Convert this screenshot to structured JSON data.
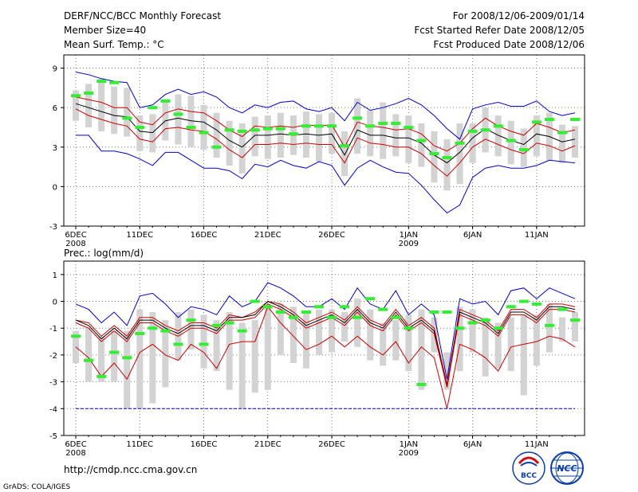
{
  "header": {
    "title": "DERF/NCC/BCC Monthly Forecast",
    "member_size": "Member Size=40",
    "variable": "Mean Surf. Temp.: °C",
    "period": "For 2008/12/06-2009/01/14",
    "started": "Fcst Started Refer Date 2008/12/05",
    "produced": "Fcst Produced Date 2008/12/06"
  },
  "footer": {
    "url": "http://cmdp.ncc.cma.gov.cn",
    "grads": "GrADS: COLA/IGES",
    "logo_left": "BCC",
    "logo_right": "NCC"
  },
  "colors": {
    "ensemble_mean": "#000000",
    "spread_inner": "#cc0000",
    "extreme": "#0000cc",
    "observed": "#33ee33",
    "box": "#d3d3d3",
    "zero_line": "#0000cc"
  },
  "chart_data": [
    {
      "type": "line",
      "title": "Mean Surf. Temp.: °C",
      "ylim": [
        -3,
        10
      ],
      "yticks": [
        -3,
        0,
        3,
        6,
        9
      ],
      "ytick_labels": [
        "-3",
        "0",
        "3",
        "6",
        "9"
      ],
      "days": 40,
      "xtick_labels": [
        {
          "day": 0,
          "label": "6DEC",
          "sub": "2008"
        },
        {
          "day": 5,
          "label": "11DEC"
        },
        {
          "day": 10,
          "label": "16DEC"
        },
        {
          "day": 15,
          "label": "21DEC"
        },
        {
          "day": 20,
          "label": "26DEC"
        },
        {
          "day": 26,
          "label": "1JAN",
          "sub": "2009"
        },
        {
          "day": 31,
          "label": "6JAN"
        },
        {
          "day": 36,
          "label": "11JAN"
        }
      ],
      "series": [
        {
          "name": "max",
          "color": "#0000cc",
          "values": [
            8.7,
            8.5,
            8.2,
            8.0,
            7.9,
            6.0,
            6.2,
            7.0,
            7.4,
            7.0,
            7.2,
            6.8,
            6.0,
            5.6,
            6.2,
            6.0,
            6.4,
            6.5,
            5.9,
            5.7,
            6.0,
            5.0,
            6.4,
            5.8,
            6.0,
            6.3,
            6.7,
            6.2,
            5.4,
            4.4,
            3.6,
            5.9,
            6.2,
            6.4,
            6.1,
            6.1,
            6.5,
            5.7,
            5.4,
            5.6
          ]
        },
        {
          "name": "upper",
          "color": "#cc0000",
          "values": [
            6.8,
            6.6,
            6.4,
            6.0,
            6.0,
            4.9,
            4.7,
            5.6,
            5.9,
            5.7,
            5.6,
            5.0,
            4.3,
            3.8,
            4.6,
            4.5,
            4.6,
            4.5,
            4.7,
            4.6,
            4.7,
            3.0,
            4.9,
            4.6,
            4.5,
            4.3,
            4.4,
            4.0,
            3.1,
            2.7,
            3.3,
            4.4,
            5.2,
            4.6,
            4.2,
            3.9,
            4.8,
            4.5,
            4.1,
            4.3
          ]
        },
        {
          "name": "mean",
          "color": "#000000",
          "values": [
            6.3,
            6.0,
            5.7,
            5.4,
            5.3,
            4.2,
            4.1,
            5.0,
            5.2,
            5.0,
            4.9,
            4.3,
            3.5,
            3.0,
            3.9,
            3.9,
            4.0,
            3.9,
            4.0,
            3.9,
            4.0,
            2.4,
            4.3,
            3.9,
            3.9,
            3.7,
            3.7,
            3.3,
            2.4,
            1.8,
            2.6,
            3.7,
            4.4,
            3.9,
            3.5,
            3.2,
            4.0,
            3.8,
            3.4,
            3.6
          ]
        },
        {
          "name": "lower",
          "color": "#cc0000",
          "values": [
            5.9,
            5.4,
            5.1,
            4.8,
            4.6,
            3.6,
            3.4,
            4.4,
            4.5,
            4.3,
            4.2,
            3.6,
            2.8,
            2.2,
            3.2,
            3.2,
            3.3,
            3.2,
            3.3,
            3.2,
            3.2,
            1.8,
            3.7,
            3.3,
            3.2,
            3.0,
            3.0,
            2.5,
            1.6,
            0.8,
            1.8,
            3.0,
            3.6,
            3.2,
            2.8,
            2.5,
            3.3,
            3.1,
            2.7,
            3.1
          ]
        },
        {
          "name": "min",
          "color": "#0000cc",
          "values": [
            3.9,
            3.9,
            2.7,
            2.7,
            2.5,
            2.1,
            1.6,
            2.6,
            2.6,
            2.0,
            1.4,
            1.4,
            1.2,
            0.6,
            1.7,
            1.5,
            2.0,
            1.6,
            1.4,
            1.9,
            1.6,
            0.1,
            1.4,
            2.0,
            1.5,
            1.1,
            1.0,
            0.1,
            -1.0,
            -2.0,
            -1.4,
            0.7,
            1.4,
            1.6,
            1.4,
            1.4,
            1.6,
            2.0,
            1.9,
            1.8
          ]
        }
      ],
      "boxes": [
        [
          5.0,
          7.3
        ],
        [
          4.5,
          7.8
        ],
        [
          4.2,
          8.2
        ],
        [
          4.0,
          7.6
        ],
        [
          3.8,
          7.5
        ],
        [
          2.7,
          5.4
        ],
        [
          2.6,
          5.5
        ],
        [
          3.5,
          6.4
        ],
        [
          3.2,
          7.0
        ],
        [
          3.0,
          6.9
        ],
        [
          2.8,
          6.2
        ],
        [
          2.2,
          5.6
        ],
        [
          1.6,
          5.0
        ],
        [
          1.0,
          4.8
        ],
        [
          2.3,
          5.3
        ],
        [
          2.1,
          5.4
        ],
        [
          2.2,
          5.6
        ],
        [
          2.4,
          5.4
        ],
        [
          2.2,
          5.7
        ],
        [
          1.9,
          5.5
        ],
        [
          2.5,
          5.6
        ],
        [
          0.8,
          4.2
        ],
        [
          2.5,
          6.7
        ],
        [
          2.3,
          5.8
        ],
        [
          2.1,
          6.4
        ],
        [
          2.3,
          5.5
        ],
        [
          1.8,
          5.4
        ],
        [
          1.5,
          4.8
        ],
        [
          0.3,
          4.2
        ],
        [
          -0.3,
          3.6
        ],
        [
          0.2,
          4.8
        ],
        [
          1.8,
          4.8
        ],
        [
          2.6,
          6.0
        ],
        [
          2.3,
          5.4
        ],
        [
          1.7,
          5.0
        ],
        [
          1.5,
          4.4
        ],
        [
          2.3,
          5.4
        ],
        [
          2.0,
          5.6
        ],
        [
          1.8,
          4.7
        ],
        [
          2.2,
          4.6
        ]
      ],
      "observed": [
        6.9,
        7.1,
        8.0,
        7.9,
        5.2,
        4.5,
        6.0,
        6.5,
        5.5,
        4.5,
        4.1,
        3.0,
        4.3,
        4.2,
        4.3,
        4.4,
        4.4,
        4.0,
        4.6,
        4.6,
        4.6,
        3.1,
        5.2,
        4.6,
        4.8,
        4.8,
        4.5,
        3.5,
        2.5,
        2.2,
        3.3,
        4.2,
        4.3,
        4.6,
        3.5,
        2.8,
        4.9,
        5.1,
        4.1,
        5.1
      ]
    },
    {
      "type": "line",
      "title": "Prec.: log(mm/d)",
      "ylim": [
        -5,
        1.5
      ],
      "yticks": [
        -5,
        -4,
        -3,
        -2,
        -1,
        0,
        1
      ],
      "ytick_labels": [
        "-5",
        "-4",
        "-3",
        "-2",
        "-1",
        "0",
        "1"
      ],
      "days": 40,
      "xtick_labels": [
        {
          "day": 0,
          "label": "6DEC",
          "sub": "2008"
        },
        {
          "day": 5,
          "label": "11DEC"
        },
        {
          "day": 10,
          "label": "16DEC"
        },
        {
          "day": 15,
          "label": "21DEC"
        },
        {
          "day": 20,
          "label": "26DEC"
        },
        {
          "day": 26,
          "label": "1JAN",
          "sub": "2009"
        },
        {
          "day": 31,
          "label": "6JAN"
        },
        {
          "day": 36,
          "label": "11JAN"
        }
      ],
      "series": [
        {
          "name": "max",
          "color": "#0000cc",
          "values": [
            -0.1,
            -0.3,
            -0.8,
            -0.4,
            -0.9,
            0.2,
            0.3,
            -0.1,
            -0.6,
            -0.2,
            -0.3,
            -0.5,
            0.2,
            -0.2,
            0.0,
            0.7,
            0.5,
            0.2,
            -0.2,
            -0.2,
            0.1,
            -0.3,
            0.5,
            -0.1,
            -0.3,
            0.4,
            -0.5,
            -0.1,
            -0.5,
            -2.9,
            0.1,
            -0.1,
            0.0,
            -0.5,
            0.4,
            0.5,
            0.1,
            0.5,
            0.3,
            0.1
          ]
        },
        {
          "name": "upper",
          "color": "#cc0000",
          "values": [
            -0.7,
            -0.8,
            -1.3,
            -0.9,
            -1.3,
            -0.6,
            -0.6,
            -0.9,
            -1.1,
            -0.8,
            -0.8,
            -1.0,
            -0.5,
            -0.6,
            -0.4,
            0.0,
            -0.1,
            -0.4,
            -0.8,
            -0.6,
            -0.4,
            -0.7,
            -0.2,
            -0.7,
            -0.9,
            -0.3,
            -0.9,
            -0.6,
            -1.0,
            -3.1,
            -0.3,
            -0.5,
            -0.7,
            -1.1,
            -0.3,
            -0.3,
            -0.6,
            -0.1,
            -0.1,
            -0.2
          ]
        },
        {
          "name": "mean",
          "color": "#000000",
          "values": [
            -0.7,
            -0.9,
            -1.4,
            -1.0,
            -1.4,
            -0.7,
            -0.7,
            -1.0,
            -1.2,
            -0.9,
            -0.9,
            -1.1,
            -0.6,
            -0.6,
            -0.5,
            0.0,
            -0.2,
            -0.5,
            -0.9,
            -0.7,
            -0.5,
            -0.8,
            -0.3,
            -0.8,
            -1.0,
            -0.4,
            -1.0,
            -0.7,
            -1.1,
            -3.2,
            -0.4,
            -0.6,
            -0.8,
            -1.2,
            -0.4,
            -0.4,
            -0.7,
            -0.2,
            -0.2,
            -0.3
          ]
        },
        {
          "name": "lower",
          "color": "#cc0000",
          "values": [
            -0.8,
            -1.0,
            -1.5,
            -1.1,
            -1.5,
            -0.8,
            -0.8,
            -1.1,
            -1.3,
            -1.0,
            -1.0,
            -1.2,
            -0.7,
            -0.7,
            -0.6,
            -0.1,
            -0.3,
            -0.6,
            -1.0,
            -0.8,
            -0.6,
            -0.9,
            -0.4,
            -0.9,
            -1.1,
            -0.5,
            -1.1,
            -0.8,
            -1.2,
            -3.2,
            -0.5,
            -0.7,
            -0.9,
            -1.3,
            -0.5,
            -0.5,
            -0.8,
            -0.3,
            -0.3,
            -0.4
          ]
        },
        {
          "name": "lowest",
          "color": "#cc0000",
          "values": [
            -1.7,
            -2.1,
            -2.8,
            -2.3,
            -2.9,
            -1.9,
            -1.6,
            -2.0,
            -2.2,
            -1.6,
            -1.9,
            -2.5,
            -1.6,
            -1.5,
            -1.5,
            -0.2,
            -0.8,
            -1.3,
            -1.8,
            -1.6,
            -1.3,
            -1.7,
            -1.3,
            -1.7,
            -2.0,
            -1.5,
            -2.3,
            -1.7,
            -2.1,
            -4.0,
            -1.6,
            -1.8,
            -2.1,
            -2.6,
            -1.7,
            -1.6,
            -1.5,
            -1.3,
            -1.4,
            -1.7
          ]
        }
      ],
      "zero_precip_level": -4,
      "boxes": [
        [
          -2.3,
          -1.1
        ],
        [
          -3.0,
          -1.0
        ],
        [
          -3.0,
          -1.3
        ],
        [
          -3.0,
          -1.1
        ],
        [
          -4.0,
          -1.1
        ],
        [
          -4.0,
          -0.3
        ],
        [
          -3.8,
          -0.4
        ],
        [
          -3.2,
          -0.7
        ],
        [
          -2.2,
          -0.4
        ],
        [
          -1.8,
          -0.3
        ],
        [
          -2.5,
          -0.5
        ],
        [
          -2.6,
          -0.7
        ],
        [
          -3.3,
          -0.4
        ],
        [
          -4.0,
          -0.8
        ],
        [
          -3.4,
          -0.7
        ],
        [
          -3.3,
          -0.2
        ],
        [
          -2.0,
          -0.1
        ],
        [
          -2.3,
          -0.2
        ],
        [
          -2.5,
          -0.4
        ],
        [
          -2.0,
          -0.3
        ],
        [
          -1.9,
          -0.3
        ],
        [
          -1.5,
          -0.4
        ],
        [
          -1.7,
          0.1
        ],
        [
          -2.2,
          -0.3
        ],
        [
          -2.4,
          -0.8
        ],
        [
          -2.2,
          -0.7
        ],
        [
          -2.6,
          -0.5
        ],
        [
          -3.3,
          -0.3
        ],
        [
          -1.9,
          -0.6
        ],
        [
          -3.3,
          -1.9
        ],
        [
          -2.6,
          -0.2
        ],
        [
          -1.9,
          -0.3
        ],
        [
          -2.8,
          -0.6
        ],
        [
          -2.5,
          -0.8
        ],
        [
          -2.6,
          -0.6
        ],
        [
          -3.5,
          -0.5
        ],
        [
          -2.4,
          -0.5
        ],
        [
          -1.9,
          -0.1
        ],
        [
          -1.5,
          -0.6
        ],
        [
          -1.5,
          -0.4
        ]
      ],
      "observed": [
        -1.3,
        -2.2,
        -2.8,
        -1.9,
        -2.1,
        -1.2,
        -1.0,
        -1.1,
        -1.6,
        -0.7,
        -1.6,
        -0.9,
        -0.8,
        -1.1,
        0.0,
        -0.2,
        -0.4,
        -0.6,
        -0.4,
        -0.2,
        -0.6,
        -0.2,
        -0.6,
        0.1,
        -0.3,
        -0.6,
        -1.0,
        -3.1,
        -0.4,
        -0.4,
        -1.0,
        -0.8,
        -0.7,
        -1.0,
        -0.2,
        0.0,
        -0.1,
        -0.9,
        -0.3,
        -0.7
      ]
    }
  ]
}
